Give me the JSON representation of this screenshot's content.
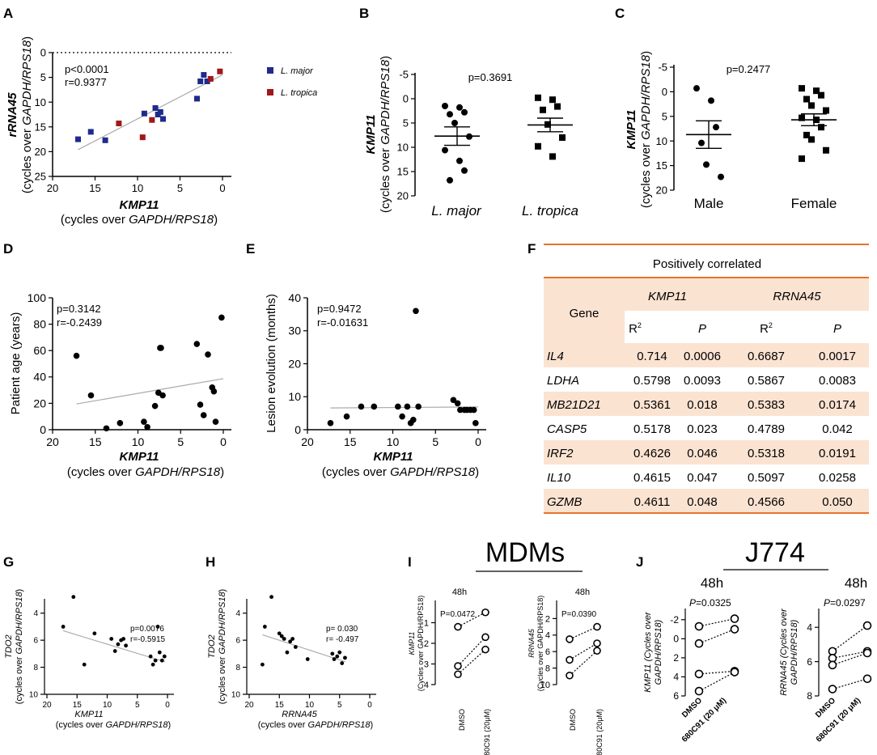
{
  "panels": {
    "A": {
      "label": "A",
      "ylabel_main": "rRNA45",
      "ylabel_sub_pre": "(cycles over ",
      "ylabel_sub_it": "GAPDH/RPS18",
      "ylabel_sub_post": ")",
      "xlabel_main": "KMP11",
      "xlabel_sub_pre": "(cycles over ",
      "xlabel_sub_it": "GAPDH/RPS18",
      "xlabel_sub_post": ")",
      "stat_p": "p<0.0001",
      "stat_r": "r=0.9377",
      "legend_major": "L. major",
      "legend_tropica": "L. tropica",
      "x_ticks": [
        "20",
        "15",
        "10",
        "5",
        "0"
      ],
      "y_ticks": [
        "0",
        "5",
        "10",
        "15",
        "20",
        "25"
      ]
    },
    "B": {
      "label": "B",
      "ylabel_main": "KMP11",
      "ylabel_sub_pre": "(cycles over ",
      "ylabel_sub_it": "GAPDH/RPS18",
      "ylabel_sub_post": ")",
      "stat": "p=0.3691",
      "cat1": "L. major",
      "cat2": "L. tropica",
      "y_ticks": [
        "-5",
        "0",
        "5",
        "10",
        "15",
        "20"
      ]
    },
    "C": {
      "label": "C",
      "ylabel_main": "KMP11",
      "ylabel_sub_pre": "(cycles over ",
      "ylabel_sub_it": "GAPDH/RPS18",
      "ylabel_sub_post": ")",
      "stat": "p=0.2477",
      "cat1": "Male",
      "cat2": "Female",
      "y_ticks": [
        "-5",
        "0",
        "5",
        "10",
        "15",
        "20"
      ]
    },
    "D": {
      "label": "D",
      "ylabel": "Patient age (years)",
      "xlabel_main": "KMP11",
      "xlabel_sub_pre": "(cycles over ",
      "xlabel_sub_it": "GAPDH/RPS18",
      "xlabel_sub_post": ")",
      "stat_p": "p=0.3142",
      "stat_r": "r=-0.2439",
      "x_ticks": [
        "20",
        "15",
        "10",
        "5",
        "0"
      ],
      "y_ticks": [
        "0",
        "20",
        "40",
        "60",
        "80",
        "100"
      ]
    },
    "E": {
      "label": "E",
      "ylabel": "Lesion evolution (months)",
      "xlabel_main": "KMP11",
      "xlabel_sub_pre": "(cycles over ",
      "xlabel_sub_it": "GAPDH/RPS18",
      "xlabel_sub_post": ")",
      "stat_p": "p=0.9472",
      "stat_r": "r=-0.01631",
      "x_ticks": [
        "20",
        "15",
        "10",
        "5",
        "0"
      ],
      "y_ticks": [
        "0",
        "10",
        "20",
        "30",
        "40"
      ]
    },
    "F": {
      "label": "F",
      "title": "Positively correlated",
      "gene_header": "Gene",
      "col_kmp": "KMP11",
      "col_rrna": "RRNA45",
      "r2": "R",
      "r2_sup": "2",
      "p": "P",
      "rows": [
        {
          "gene": "IL4",
          "kr2": "0.714",
          "kp": "0.0006",
          "rr2": "0.6687",
          "rp": "0.0017"
        },
        {
          "gene": "LDHA",
          "kr2": "0.5798",
          "kp": "0.0093",
          "rr2": "0.5867",
          "rp": "0.0083"
        },
        {
          "gene": "MB21D21",
          "kr2": "0.5361",
          "kp": "0.018",
          "rr2": "0.5383",
          "rp": "0.0174"
        },
        {
          "gene": "CASP5",
          "kr2": "0.5178",
          "kp": "0.023",
          "rr2": "0.4789",
          "rp": "0.042"
        },
        {
          "gene": "IRF2",
          "kr2": "0.4626",
          "kp": "0.046",
          "rr2": "0.5318",
          "rp": "0.0191"
        },
        {
          "gene": "IL10",
          "kr2": "0.4615",
          "kp": "0.047",
          "rr2": "0.5097",
          "rp": "0.0258"
        },
        {
          "gene": "GZMB",
          "kr2": "0.4611",
          "kp": "0.048",
          "rr2": "0.4566",
          "rp": "0.050"
        }
      ]
    },
    "G": {
      "label": "G",
      "ylabel_main": "TDO2",
      "ylabel_sub_pre": "(cycles over ",
      "ylabel_sub_it": "GAPDH/RPS18",
      "ylabel_sub_post": ")",
      "xlabel_main": "KMP11",
      "xlabel_sub_pre": "(cycles over ",
      "xlabel_sub_it": "GAPDH/RPS18",
      "xlabel_sub_post": ")",
      "stat_p": "p=0.0076",
      "stat_r": "r=-0.5915",
      "x_ticks": [
        "20",
        "15",
        "10",
        "5",
        "0"
      ],
      "y_ticks": [
        "4",
        "6",
        "8",
        "10"
      ]
    },
    "H": {
      "label": "H",
      "ylabel_main": "TDO2",
      "ylabel_sub_pre": "(cycles over ",
      "ylabel_sub_it": "GAPDH/RPS18",
      "ylabel_sub_post": ")",
      "xlabel_main": "RRNA45",
      "xlabel_sub_pre": "(cycles over ",
      "xlabel_sub_it": "GAPDH/RPS18",
      "xlabel_sub_post": ")",
      "stat_p": "p= 0.030",
      "stat_r": "r= -0.497",
      "x_ticks": [
        "20",
        "15",
        "10",
        "5",
        "0"
      ],
      "y_ticks": [
        "4",
        "6",
        "8",
        "10"
      ]
    },
    "I": {
      "label": "I",
      "group_title": "MDMs",
      "left_time": "48h",
      "left_stat": "P=0.0472",
      "left_ylabel_main": "KMP11",
      "left_ylabel_sub": "(Cycles over GAPDH/RPS18)",
      "left_y_ticks": [
        "1",
        "2",
        "3",
        "4"
      ],
      "right_time": "48h",
      "right_stat": "P=0.0390",
      "right_ylabel_main": "RRNA45",
      "right_ylabel_sub": "(Cycles over GAPDH/RPS18)",
      "right_y_ticks": [
        "2",
        "4",
        "6",
        "8",
        "10"
      ],
      "x_dmso": "DMSO",
      "x_drug": "680C91 (20μM)"
    },
    "J": {
      "label": "J",
      "group_title": "J774",
      "left_time": "48h",
      "left_stat_it": "P",
      "left_stat": "=0.0325",
      "left_ylabel_l1": "KMP11 (Cycles over",
      "left_ylabel_l2": "GAPDH/RPS18)",
      "left_y_ticks": [
        "-2",
        "0",
        "2",
        "4",
        "6"
      ],
      "right_time": "48h",
      "right_stat_it": "P",
      "right_stat": "=0.0297",
      "right_ylabel_l1": "RRNA45 (Cycles over",
      "right_ylabel_l2": "GAPDH/RPS18)",
      "right_y_ticks": [
        "4",
        "6",
        "8"
      ],
      "x_dmso": "DMSO",
      "x_drug": "680C91 (20 μM)"
    }
  },
  "colors": {
    "major": "#1f2a8c",
    "tropica": "#a01818",
    "fit": "#aaaaaa",
    "table_band": "#fbe3d2",
    "table_rule": "#e8732a"
  },
  "chart_data": [
    {
      "id": "A",
      "type": "scatter",
      "xlim": [
        20,
        -3
      ],
      "ylim": [
        0,
        25
      ],
      "x_inverted": true,
      "y_inverted": true,
      "title": "",
      "xlabel": "KMP11 (cycles over GAPDH/RPS18)",
      "ylabel": "rRNA45 (cycles over GAPDH/RPS18)",
      "series": [
        {
          "name": "L. major",
          "x": [
            17.0,
            15.5,
            13.8,
            9.2,
            7.9,
            7.6,
            7.3,
            7.0,
            3.0,
            2.6,
            2.2,
            1.8
          ],
          "y": [
            17.5,
            16.0,
            17.7,
            12.3,
            11.2,
            12.5,
            12.0,
            13.4,
            9.3,
            5.8,
            4.5,
            5.8
          ]
        },
        {
          "name": "L. tropica",
          "x": [
            12.2,
            9.4,
            8.3,
            1.4,
            0.3
          ],
          "y": [
            14.3,
            17.1,
            13.6,
            5.3,
            3.8
          ]
        }
      ],
      "fit": {
        "x": [
          17.0,
          0.0
        ],
        "y": [
          19.6,
          4.5
        ]
      }
    },
    {
      "id": "B",
      "type": "scatter",
      "ylim": [
        -5,
        20
      ],
      "y_inverted": true,
      "categories": [
        "L. major",
        "L. tropica"
      ],
      "series": [
        {
          "name": "L. major",
          "values": [
            1.5,
            1.8,
            2.8,
            3.2,
            5.0,
            7.8,
            10.6,
            12.8,
            14.8,
            16.8
          ],
          "mean": 7.7,
          "sem": 1.9
        },
        {
          "name": "L. tropica",
          "values": [
            -0.2,
            0.2,
            1.6,
            2.3,
            5.3,
            8.0,
            9.8,
            11.9
          ],
          "mean": 5.4,
          "sem": 1.4
        }
      ]
    },
    {
      "id": "C",
      "type": "scatter",
      "ylim": [
        -5,
        20
      ],
      "y_inverted": true,
      "categories": [
        "Male",
        "Female"
      ],
      "series": [
        {
          "name": "Male",
          "values": [
            -0.7,
            1.8,
            7.2,
            10.4,
            14.8,
            17.3
          ],
          "mean": 8.7,
          "sem": 2.8
        },
        {
          "name": "Female",
          "values": [
            -0.7,
            -0.2,
            0.7,
            1.5,
            2.8,
            3.8,
            5.3,
            5.7,
            7.2,
            8.8,
            9.7,
            11.9,
            13.6
          ],
          "mean": 5.7,
          "sem": 1.2
        }
      ]
    },
    {
      "id": "D",
      "type": "scatter",
      "xlim": [
        20,
        -1
      ],
      "ylim": [
        0,
        100
      ],
      "x_inverted": true,
      "xlabel": "KMP11 (cycles over GAPDH/RPS18)",
      "ylabel": "Patient age (years)",
      "x": [
        17.2,
        15.5,
        13.7,
        12.1,
        9.3,
        8.9,
        8.0,
        7.6,
        7.4,
        7.3,
        7.1,
        3.1,
        2.7,
        2.3,
        1.8,
        1.3,
        1.1,
        0.9,
        0.2
      ],
      "y": [
        56,
        26,
        1,
        5,
        6,
        2,
        18,
        28,
        62,
        62,
        26,
        65,
        19,
        11,
        57,
        32,
        29,
        6,
        85
      ],
      "fit": {
        "x": [
          17.2,
          0.0
        ],
        "y": [
          19.5,
          38.7
        ]
      }
    },
    {
      "id": "E",
      "type": "scatter",
      "xlim": [
        20,
        -1
      ],
      "ylim": [
        0,
        40
      ],
      "x_inverted": true,
      "xlabel": "KMP11 (cycles over GAPDH/RPS18)",
      "ylabel": "Lesion evolution (months)",
      "x": [
        17.3,
        15.4,
        13.7,
        12.2,
        9.4,
        8.9,
        8.3,
        7.9,
        7.6,
        7.3,
        7.0,
        2.9,
        2.4,
        2.1,
        1.6,
        1.3,
        0.9,
        0.5,
        0.3
      ],
      "y": [
        2,
        4,
        7,
        7,
        7,
        4,
        7,
        2,
        3,
        36,
        7,
        9,
        8,
        6,
        6,
        6,
        6,
        6,
        2
      ],
      "fit": {
        "x": [
          17.3,
          0.0
        ],
        "y": [
          6.6,
          6.9
        ]
      }
    },
    {
      "id": "G",
      "type": "scatter",
      "xlim": [
        20,
        -1
      ],
      "ylim": [
        3,
        10
      ],
      "y_inverted": true,
      "x_inverted": true,
      "xlabel": "KMP11 (cycles over GAPDH/RPS18)",
      "ylabel": "TDO2 (cycles over GAPDH/RPS18)",
      "x": [
        17.3,
        15.6,
        13.8,
        12.1,
        9.3,
        8.7,
        8.2,
        7.7,
        7.3,
        6.9,
        2.8,
        2.4,
        2.0,
        1.6,
        1.3,
        0.9,
        0.5
      ],
      "y": [
        5.0,
        2.8,
        7.8,
        5.5,
        5.9,
        6.8,
        6.3,
        6.0,
        5.9,
        6.4,
        7.2,
        7.8,
        7.5,
        5.0,
        6.9,
        7.5,
        7.2
      ],
      "fit": {
        "x": [
          17.3,
          0.4
        ],
        "y": [
          5.3,
          7.6
        ]
      }
    },
    {
      "id": "H",
      "type": "scatter",
      "xlim": [
        20,
        -1
      ],
      "ylim": [
        3,
        10
      ],
      "y_inverted": true,
      "x_inverted": true,
      "xlabel": "RRNA45 (cycles over GAPDH/RPS18)",
      "ylabel": "TDO2 (cycles over GAPDH/RPS18)",
      "x": [
        17.8,
        17.4,
        16.3,
        15.0,
        14.6,
        14.2,
        13.7,
        13.2,
        12.8,
        12.3,
        10.3,
        6.2,
        5.9,
        5.4,
        5.0,
        4.6,
        4.1
      ],
      "y": [
        7.8,
        5.0,
        2.8,
        5.5,
        5.7,
        5.9,
        6.9,
        6.1,
        5.9,
        6.5,
        7.4,
        7.0,
        7.4,
        7.2,
        6.9,
        7.7,
        7.3
      ],
      "fit": {
        "x": [
          17.8,
          4.0
        ],
        "y": [
          5.6,
          7.6
        ]
      }
    },
    {
      "id": "I-left",
      "type": "line",
      "ylim": [
        0,
        4
      ],
      "y_inverted": true,
      "categories": [
        "DMSO",
        "680C91 (20μM)"
      ],
      "pairs": [
        [
          1.2,
          0.5
        ],
        [
          3.1,
          1.7
        ],
        [
          3.5,
          2.3
        ]
      ]
    },
    {
      "id": "I-right",
      "type": "line",
      "ylim": [
        0,
        10
      ],
      "y_inverted": true,
      "categories": [
        "DMSO",
        "680C91 (20μM)"
      ],
      "pairs": [
        [
          4.5,
          3.0
        ],
        [
          7.0,
          5.0
        ],
        [
          8.9,
          5.9
        ]
      ]
    },
    {
      "id": "J-left",
      "type": "line",
      "ylim": [
        -3,
        6
      ],
      "y_inverted": true,
      "categories": [
        "DMSO",
        "680C91 (20 μM)"
      ],
      "pairs": [
        [
          -1.3,
          -2.1
        ],
        [
          0.5,
          -1.0
        ],
        [
          3.7,
          3.4
        ],
        [
          5.5,
          3.5
        ]
      ]
    },
    {
      "id": "J-right",
      "type": "line",
      "ylim": [
        3,
        8
      ],
      "y_inverted": true,
      "categories": [
        "DMSO",
        "680C91 (20 μM)"
      ],
      "pairs": [
        [
          5.4,
          3.9
        ],
        [
          5.8,
          5.4
        ],
        [
          6.2,
          5.5
        ],
        [
          7.6,
          7.0
        ]
      ]
    }
  ]
}
